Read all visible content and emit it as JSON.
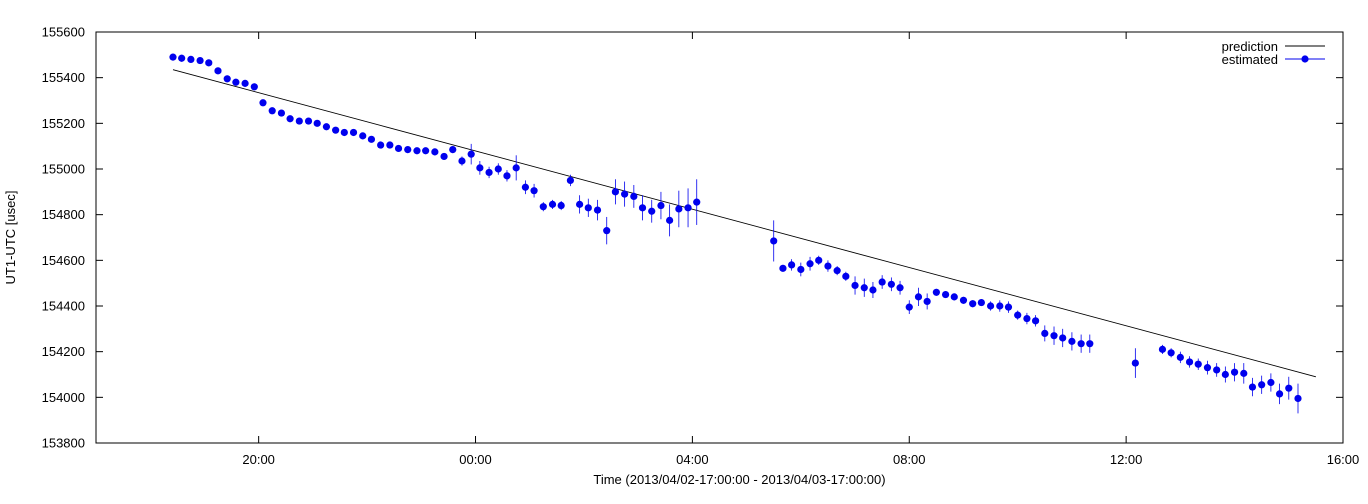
{
  "chart_data": {
    "type": "scatter",
    "xlabel": "Time (2013/04/02-17:00:00 - 2013/04/03-17:00:00)",
    "ylabel": "UT1-UTC [usec]",
    "xlim": [
      17.0,
      40.0
    ],
    "ylim": [
      153800,
      155600
    ],
    "xticks": [
      {
        "x": 20,
        "label": "20:00"
      },
      {
        "x": 24,
        "label": "00:00"
      },
      {
        "x": 28,
        "label": "04:00"
      },
      {
        "x": 32,
        "label": "08:00"
      },
      {
        "x": 36,
        "label": "12:00"
      },
      {
        "x": 40,
        "label": "16:00"
      }
    ],
    "yticks": [
      153800,
      154000,
      154200,
      154400,
      154600,
      154800,
      155000,
      155200,
      155400,
      155600
    ],
    "legend_position": "top-right",
    "colors": {
      "prediction": "#000000",
      "estimated": "#0000ee"
    },
    "series": [
      {
        "name": "prediction",
        "type": "line",
        "points": [
          [
            18.42,
            155435
          ],
          [
            39.5,
            154090
          ]
        ]
      },
      {
        "name": "estimated",
        "type": "scatter-errorbar",
        "points": [
          [
            18.42,
            155490,
            15
          ],
          [
            18.58,
            155485,
            15
          ],
          [
            18.75,
            155480,
            15
          ],
          [
            18.92,
            155475,
            15
          ],
          [
            19.08,
            155465,
            15
          ],
          [
            19.25,
            155430,
            15
          ],
          [
            19.42,
            155395,
            15
          ],
          [
            19.58,
            155380,
            15
          ],
          [
            19.75,
            155375,
            15
          ],
          [
            19.92,
            155360,
            15
          ],
          [
            20.08,
            155290,
            12
          ],
          [
            20.25,
            155255,
            12
          ],
          [
            20.42,
            155245,
            12
          ],
          [
            20.58,
            155220,
            12
          ],
          [
            20.75,
            155210,
            12
          ],
          [
            20.92,
            155210,
            12
          ],
          [
            21.08,
            155200,
            12
          ],
          [
            21.25,
            155185,
            12
          ],
          [
            21.42,
            155170,
            12
          ],
          [
            21.58,
            155160,
            12
          ],
          [
            21.75,
            155160,
            12
          ],
          [
            21.92,
            155145,
            12
          ],
          [
            22.08,
            155130,
            12
          ],
          [
            22.25,
            155105,
            12
          ],
          [
            22.42,
            155105,
            12
          ],
          [
            22.58,
            155090,
            12
          ],
          [
            22.75,
            155085,
            12
          ],
          [
            22.92,
            155080,
            12
          ],
          [
            23.08,
            155080,
            12
          ],
          [
            23.25,
            155075,
            15
          ],
          [
            23.42,
            155055,
            15
          ],
          [
            23.58,
            155085,
            15
          ],
          [
            23.75,
            155035,
            20
          ],
          [
            23.92,
            155065,
            45
          ],
          [
            24.08,
            155005,
            30
          ],
          [
            24.25,
            154985,
            25
          ],
          [
            24.42,
            155000,
            25
          ],
          [
            24.58,
            154970,
            25
          ],
          [
            24.75,
            155005,
            55
          ],
          [
            24.92,
            154920,
            30
          ],
          [
            25.08,
            154905,
            30
          ],
          [
            25.25,
            154835,
            20
          ],
          [
            25.42,
            154845,
            20
          ],
          [
            25.58,
            154840,
            20
          ],
          [
            25.75,
            154950,
            25
          ],
          [
            25.92,
            154845,
            40
          ],
          [
            26.08,
            154830,
            40
          ],
          [
            26.25,
            154820,
            45
          ],
          [
            26.42,
            154730,
            60
          ],
          [
            26.58,
            154900,
            55
          ],
          [
            26.75,
            154890,
            55
          ],
          [
            26.92,
            154880,
            50
          ],
          [
            27.08,
            154830,
            55
          ],
          [
            27.25,
            154815,
            50
          ],
          [
            27.42,
            154840,
            60
          ],
          [
            27.58,
            154775,
            70
          ],
          [
            27.75,
            154825,
            80
          ],
          [
            27.92,
            154830,
            85
          ],
          [
            28.08,
            154855,
            100
          ],
          [
            29.5,
            154685,
            90
          ],
          [
            29.67,
            154565,
            15
          ],
          [
            29.83,
            154580,
            25
          ],
          [
            30.0,
            154560,
            30
          ],
          [
            30.17,
            154585,
            30
          ],
          [
            30.33,
            154600,
            20
          ],
          [
            30.5,
            154575,
            25
          ],
          [
            30.67,
            154555,
            20
          ],
          [
            30.83,
            154530,
            20
          ],
          [
            31.0,
            154490,
            40
          ],
          [
            31.17,
            154480,
            40
          ],
          [
            31.33,
            154470,
            35
          ],
          [
            31.5,
            154505,
            30
          ],
          [
            31.67,
            154495,
            30
          ],
          [
            31.83,
            154480,
            30
          ],
          [
            32.0,
            154395,
            30
          ],
          [
            32.17,
            154440,
            40
          ],
          [
            32.33,
            154420,
            35
          ],
          [
            32.5,
            154460,
            15
          ],
          [
            32.67,
            154450,
            15
          ],
          [
            32.83,
            154440,
            15
          ],
          [
            33.0,
            154425,
            15
          ],
          [
            33.17,
            154410,
            15
          ],
          [
            33.33,
            154415,
            15
          ],
          [
            33.5,
            154400,
            20
          ],
          [
            33.67,
            154400,
            25
          ],
          [
            33.83,
            154395,
            25
          ],
          [
            34.0,
            154360,
            20
          ],
          [
            34.17,
            154345,
            25
          ],
          [
            34.33,
            154335,
            25
          ],
          [
            34.5,
            154280,
            35
          ],
          [
            34.67,
            154270,
            40
          ],
          [
            34.83,
            154260,
            40
          ],
          [
            35.0,
            154245,
            40
          ],
          [
            35.17,
            154235,
            40
          ],
          [
            35.33,
            154235,
            40
          ],
          [
            36.17,
            154150,
            65
          ],
          [
            36.67,
            154210,
            20
          ],
          [
            36.83,
            154195,
            20
          ],
          [
            37.0,
            154175,
            25
          ],
          [
            37.17,
            154155,
            25
          ],
          [
            37.33,
            154145,
            25
          ],
          [
            37.5,
            154130,
            30
          ],
          [
            37.67,
            154120,
            30
          ],
          [
            37.83,
            154100,
            35
          ],
          [
            38.0,
            154110,
            40
          ],
          [
            38.17,
            154105,
            45
          ],
          [
            38.33,
            154045,
            40
          ],
          [
            38.5,
            154055,
            40
          ],
          [
            38.67,
            154065,
            40
          ],
          [
            38.83,
            154015,
            45
          ],
          [
            39.0,
            154040,
            50
          ],
          [
            39.17,
            153995,
            65
          ]
        ]
      }
    ]
  }
}
